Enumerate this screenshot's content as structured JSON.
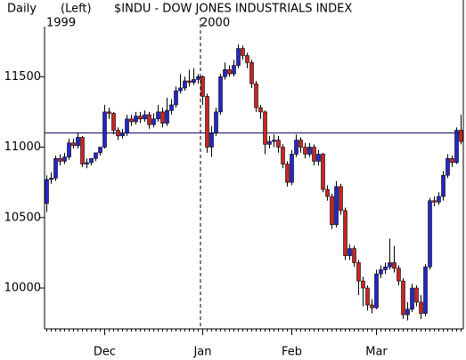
{
  "chart_data": {
    "type": "candlestick",
    "period": "Daily",
    "axis_side": "(Left)",
    "title": "$INDU - DOW JONES INDUSTRIALS INDEX",
    "years": [
      "1999",
      "2000"
    ],
    "categories": [
      null,
      null,
      null,
      null,
      null,
      null,
      null,
      null,
      null,
      null,
      null,
      null,
      null,
      "Dec",
      null,
      null,
      null,
      null,
      null,
      null,
      null,
      null,
      null,
      null,
      null,
      null,
      null,
      null,
      null,
      null,
      null,
      null,
      null,
      null,
      null,
      "Jan",
      null,
      null,
      null,
      null,
      null,
      null,
      null,
      null,
      null,
      null,
      null,
      null,
      null,
      null,
      null,
      null,
      null,
      null,
      null,
      "Feb",
      null,
      null,
      null,
      null,
      null,
      null,
      null,
      null,
      null,
      null,
      null,
      null,
      null,
      null,
      null,
      null,
      null,
      null,
      "Mar",
      null,
      null,
      null,
      null,
      null,
      null,
      null,
      null,
      null,
      null,
      null,
      null,
      null,
      null,
      null,
      null,
      null,
      null,
      null
    ],
    "open": [
      10600,
      10770,
      10780,
      10920,
      10900,
      10930,
      11030,
      11010,
      11070,
      10880,
      10890,
      10920,
      10960,
      11000,
      11250,
      11240,
      11120,
      11080,
      11100,
      11200,
      11180,
      11220,
      11200,
      11230,
      11160,
      11200,
      11250,
      11170,
      11260,
      11300,
      11400,
      11420,
      11470,
      11460,
      11480,
      11500,
      11360,
      11000,
      11100,
      11250,
      11500,
      11550,
      11520,
      11580,
      11700,
      11650,
      11600,
      11450,
      11280,
      11250,
      11020,
      11040,
      11050,
      11000,
      10880,
      10750,
      10950,
      11050,
      11000,
      10950,
      11000,
      10900,
      10950,
      10700,
      10650,
      10450,
      10720,
      10550,
      10230,
      10280,
      10180,
      10050,
      10000,
      9880,
      9860,
      10100,
      10130,
      10150,
      10180,
      10140,
      10050,
      9810,
      9850,
      10000,
      9900,
      9820,
      10150,
      10620,
      10610,
      10650,
      10800,
      10920,
      10890,
      11120
    ],
    "high": [
      10800,
      10820,
      10940,
      10950,
      10960,
      11060,
      11060,
      11100,
      11080,
      10920,
      10920,
      10950,
      10990,
      11300,
      11280,
      11250,
      11140,
      11130,
      11230,
      11230,
      11250,
      11250,
      11260,
      11250,
      11240,
      11300,
      11280,
      11350,
      11340,
      11430,
      11520,
      11500,
      11550,
      11560,
      11520,
      11510,
      11380,
      11150,
      11280,
      11520,
      11600,
      11580,
      11620,
      11730,
      11720,
      11670,
      11620,
      11470,
      11300,
      11260,
      11080,
      11090,
      11080,
      11020,
      10900,
      10980,
      11090,
      11070,
      11030,
      11030,
      11020,
      10980,
      10960,
      10730,
      10670,
      10760,
      10740,
      10570,
      10310,
      10300,
      10200,
      10080,
      10020,
      9920,
      10130,
      10160,
      10180,
      10350,
      10300,
      10160,
      10070,
      9900,
      10030,
      10020,
      9950,
      10170,
      10640,
      10650,
      10680,
      10830,
      10950,
      10940,
      11140,
      11230
    ],
    "low": [
      10540,
      10740,
      10760,
      10870,
      10880,
      10910,
      10990,
      10990,
      10860,
      10850,
      10870,
      10900,
      10940,
      10990,
      11200,
      11090,
      11050,
      11060,
      11080,
      11150,
      11160,
      11170,
      11180,
      11130,
      11140,
      11180,
      11140,
      11150,
      11230,
      11280,
      11380,
      11400,
      11430,
      11440,
      11450,
      11300,
      10960,
      10930,
      11080,
      11230,
      11480,
      11500,
      11500,
      11560,
      11620,
      11560,
      11420,
      11250,
      11200,
      10950,
      10990,
      11000,
      10960,
      10850,
      10720,
      10730,
      10930,
      10960,
      10920,
      10930,
      10870,
      10870,
      10680,
      10620,
      10420,
      10430,
      10520,
      10200,
      10200,
      10150,
      9950,
      9870,
      9840,
      9820,
      9850,
      10070,
      10100,
      10130,
      10110,
      10020,
      9780,
      9770,
      9830,
      9870,
      9780,
      9800,
      10130,
      10580,
      10590,
      10620,
      10780,
      10860,
      10880,
      11020
    ],
    "close": [
      10770,
      10780,
      10920,
      10900,
      10930,
      11030,
      11010,
      11070,
      10880,
      10890,
      10920,
      10960,
      11000,
      11250,
      11240,
      11120,
      11080,
      11100,
      11200,
      11180,
      11220,
      11200,
      11230,
      11160,
      11200,
      11250,
      11170,
      11260,
      11300,
      11400,
      11420,
      11470,
      11460,
      11480,
      11500,
      11360,
      11000,
      11100,
      11250,
      11500,
      11550,
      11520,
      11580,
      11700,
      11650,
      11600,
      11450,
      11280,
      11250,
      11020,
      11040,
      11050,
      11000,
      10880,
      10750,
      10950,
      11050,
      11000,
      10950,
      11000,
      10900,
      10950,
      10700,
      10650,
      10450,
      10720,
      10550,
      10230,
      10280,
      10180,
      10050,
      10000,
      9880,
      9860,
      10100,
      10130,
      10150,
      10180,
      10140,
      10050,
      9810,
      9850,
      10000,
      9900,
      9820,
      10150,
      10620,
      10610,
      10650,
      10800,
      10920,
      10890,
      11120,
      11040
    ],
    "up_color": "#2626c8",
    "down_color": "#c82626",
    "ref_line": 11100,
    "ref_color": "#000066",
    "ylim": [
      9710,
      11855
    ],
    "yticks": [
      10000,
      10500,
      11000,
      11500
    ]
  }
}
